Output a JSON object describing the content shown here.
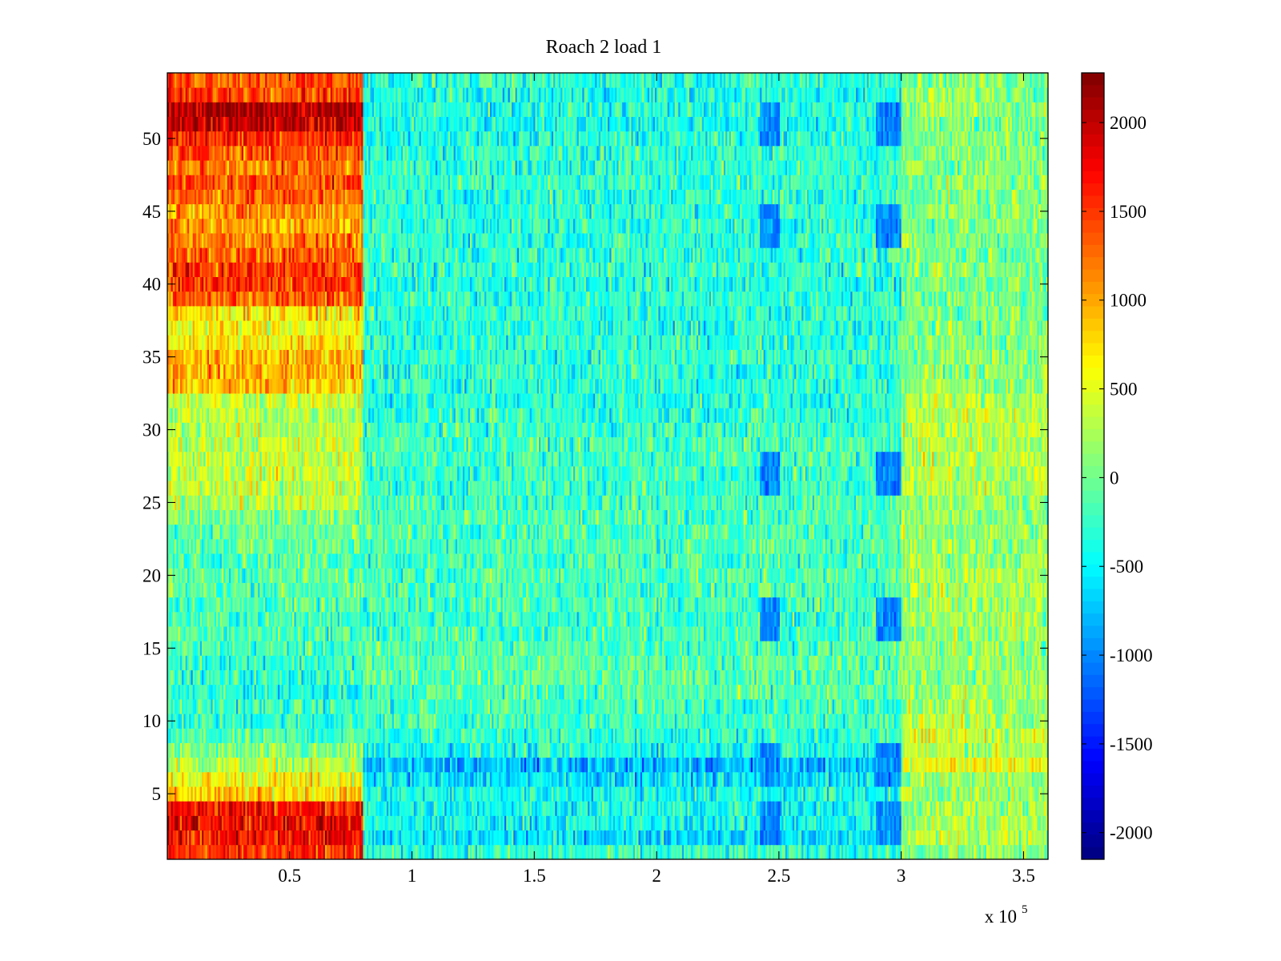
{
  "chart_data": {
    "type": "heatmap",
    "title": "Roach 2 load 1",
    "xlabel": "",
    "ylabel": "",
    "x_multiplier_label": {
      "base": "x 10",
      "exponent": "5"
    },
    "xlim": [
      0,
      3.6
    ],
    "ylim": [
      0.5,
      54.5
    ],
    "x_ticks": [
      0.5,
      1,
      1.5,
      2,
      2.5,
      3,
      3.5
    ],
    "x_tick_labels": [
      "0.5",
      "1",
      "1.5",
      "2",
      "2.5",
      "3",
      "3.5"
    ],
    "y_ticks": [
      5,
      10,
      15,
      20,
      25,
      30,
      35,
      40,
      45,
      50
    ],
    "y_tick_labels": [
      "5",
      "10",
      "15",
      "20",
      "25",
      "30",
      "35",
      "40",
      "45",
      "50"
    ],
    "rows": 54,
    "colormap": "jet",
    "colorbar": {
      "clim": [
        -2150,
        2280
      ],
      "ticks": [
        -2000,
        -1500,
        -1000,
        -500,
        0,
        500,
        1000,
        1500,
        2000
      ],
      "tick_labels": [
        "-2000",
        "-1500",
        "-1000",
        "-500",
        "0",
        "500",
        "1000",
        "1500",
        "2000"
      ]
    },
    "segments": [
      {
        "x_range": [
          0,
          0.8
        ],
        "row_means": [
          1500,
          1700,
          1800,
          1700,
          800,
          600,
          300,
          0,
          -200,
          -300,
          -250,
          -350,
          -300,
          -250,
          -200,
          -150,
          -200,
          -150,
          -100,
          -100,
          -100,
          -50,
          -50,
          0,
          300,
          350,
          400,
          350,
          350,
          300,
          300,
          400,
          900,
          950,
          950,
          700,
          600,
          700,
          1300,
          1500,
          1500,
          1300,
          1200,
          1000,
          1100,
          1300,
          1400,
          1200,
          1400,
          1600,
          2000,
          2100,
          1500,
          1400
        ]
      },
      {
        "x_range": [
          0.8,
          3.0
        ],
        "row_means": [
          -300,
          -600,
          -450,
          -400,
          -400,
          -600,
          -800,
          -400,
          -300,
          -200,
          -200,
          -150,
          -100,
          -100,
          -150,
          -200,
          -250,
          -200,
          -200,
          -150,
          -200,
          -150,
          -150,
          -200,
          -200,
          -250,
          -250,
          -200,
          -200,
          -250,
          -300,
          -350,
          -300,
          -300,
          -300,
          -300,
          -350,
          -300,
          -300,
          -350,
          -300,
          -300,
          -300,
          -300,
          -300,
          -300,
          -300,
          -300,
          -300,
          -350,
          -400,
          -350,
          -400,
          -300
        ]
      },
      {
        "x_range": [
          3.0,
          3.6
        ],
        "row_means": [
          100,
          300,
          250,
          200,
          200,
          200,
          600,
          300,
          400,
          300,
          250,
          200,
          150,
          100,
          100,
          150,
          200,
          250,
          250,
          250,
          200,
          150,
          150,
          150,
          200,
          250,
          300,
          300,
          300,
          350,
          350,
          300,
          150,
          100,
          100,
          50,
          50,
          50,
          0,
          50,
          50,
          50,
          50,
          50,
          100,
          50,
          100,
          100,
          100,
          100,
          50,
          150,
          150,
          100
        ]
      }
    ],
    "notable_features": [
      {
        "x_range": [
          2.42,
          2.5
        ],
        "rows": [
          3,
          7,
          17,
          27,
          44,
          51
        ],
        "value": -1000
      },
      {
        "x_range": [
          2.9,
          3.0
        ],
        "rows": [
          3,
          7,
          17,
          27,
          44,
          51
        ],
        "value": -1000
      }
    ]
  }
}
